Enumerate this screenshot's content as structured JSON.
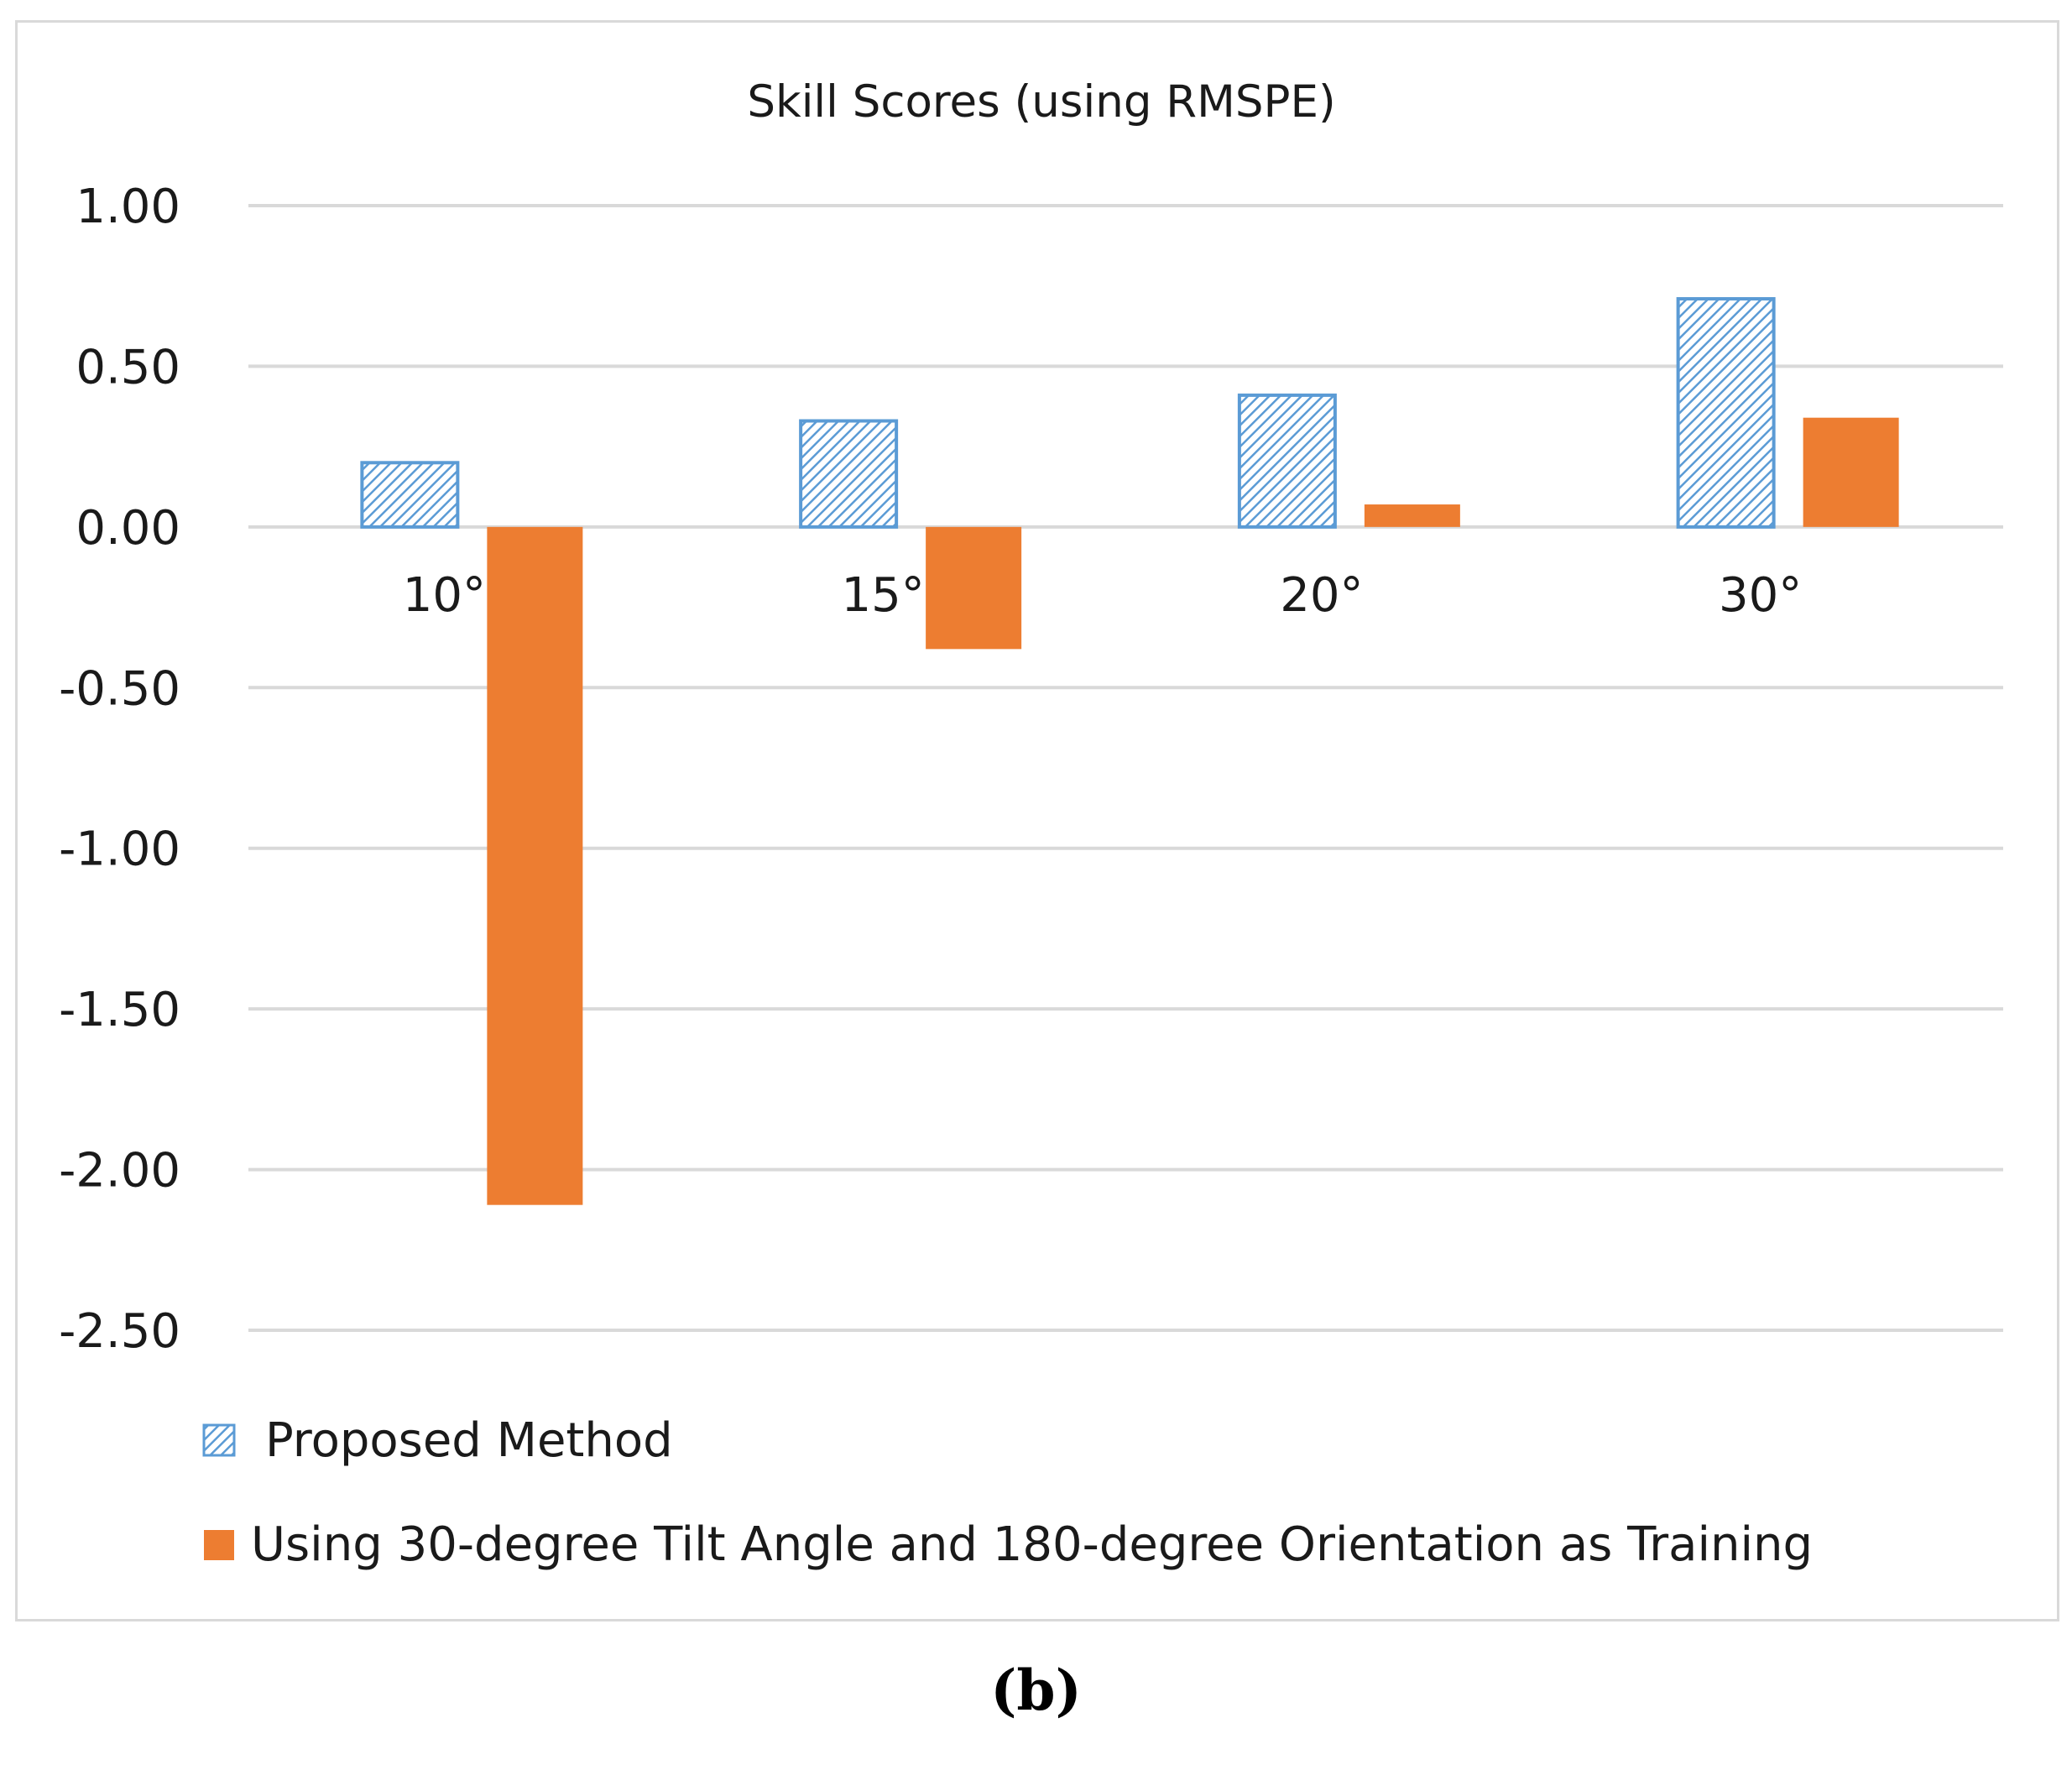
{
  "colors": {
    "proposed_stroke": "#5b9bd5",
    "proposed_hatch": "#5b9bd5",
    "training_fill": "#ed7d31",
    "grid": "#d9d9d9",
    "text": "#1a1a1a"
  },
  "chart_data": {
    "type": "bar",
    "title": "Skill Scores (using RMSPE)",
    "xlabel": "",
    "ylabel": "",
    "categories": [
      "10°",
      "15°",
      "20°",
      "30°"
    ],
    "ylim": [
      -2.5,
      1.0
    ],
    "yticks": [
      1.0,
      0.5,
      0.0,
      -0.5,
      -1.0,
      -1.5,
      -2.0,
      -2.5
    ],
    "ytick_labels": [
      "1.00",
      "0.50",
      "0.00",
      "-0.50",
      "-1.00",
      "-1.50",
      "-2.00",
      "-2.50"
    ],
    "grid": true,
    "legend_position": "bottom-left",
    "series": [
      {
        "name": "Proposed Method",
        "style": "hatched",
        "values": [
          0.2,
          0.33,
          0.41,
          0.71
        ]
      },
      {
        "name": "Using 30-degree Tilt Angle and 180-degree Orientation as Training",
        "style": "solid",
        "values": [
          -2.11,
          -0.38,
          0.07,
          0.34
        ]
      }
    ]
  },
  "caption": {
    "text": "(b)"
  }
}
